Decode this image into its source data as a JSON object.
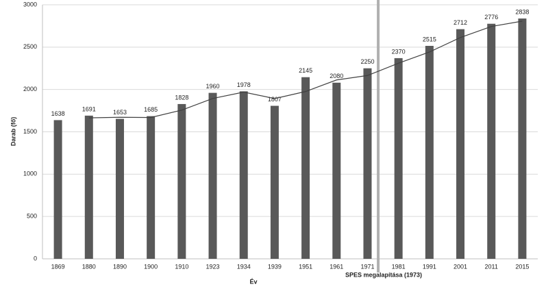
{
  "chart_data": {
    "type": "bar",
    "y_axis_label": "Darab (fő)",
    "x_axis_label": "Év",
    "annotation": "SPES megalapítása (1973)",
    "categories": [
      "1869",
      "1880",
      "1890",
      "1900",
      "1910",
      "1923",
      "1934",
      "1939",
      "1951",
      "1961",
      "1971",
      "1981",
      "1991",
      "2001",
      "2011",
      "2015"
    ],
    "values": [
      1638,
      1691,
      1653,
      1685,
      1828,
      1960,
      1978,
      1807,
      2145,
      2080,
      2250,
      2370,
      2515,
      2712,
      2776,
      2838
    ],
    "color": "#595959",
    "trendline": {
      "color": "#404040",
      "values": [
        null,
        1664.5,
        1672,
        1669,
        1756.5,
        1894,
        1969,
        1892.5,
        1976,
        2112.5,
        2165,
        2310,
        2442.5,
        2613.5,
        2744,
        2807
      ]
    },
    "ylim": [
      0,
      3000
    ],
    "yticks": [
      0,
      500,
      1000,
      1500,
      2000,
      2500,
      3000
    ],
    "grid": true
  }
}
